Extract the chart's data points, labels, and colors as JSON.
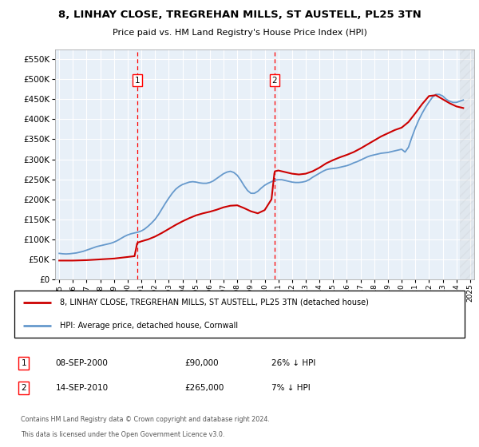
{
  "title": "8, LINHAY CLOSE, TREGREHAN MILLS, ST AUSTELL, PL25 3TN",
  "subtitle": "Price paid vs. HM Land Registry's House Price Index (HPI)",
  "ylim": [
    0,
    575000
  ],
  "yticks": [
    0,
    50000,
    100000,
    150000,
    200000,
    250000,
    300000,
    350000,
    400000,
    450000,
    500000,
    550000
  ],
  "xlim_start": 1994.7,
  "xlim_end": 2025.3,
  "sale1_x": 2000.69,
  "sale2_x": 2010.71,
  "sale1_label": "1",
  "sale2_label": "2",
  "legend_line1": "8, LINHAY CLOSE, TREGREHAN MILLS, ST AUSTELL, PL25 3TN (detached house)",
  "legend_line2": "HPI: Average price, detached house, Cornwall",
  "footer1": "Contains HM Land Registry data © Crown copyright and database right 2024.",
  "footer2": "This data is licensed under the Open Government Licence v3.0.",
  "table_row1": [
    "1",
    "08-SEP-2000",
    "£90,000",
    "26% ↓ HPI"
  ],
  "table_row2": [
    "2",
    "14-SEP-2010",
    "£265,000",
    "7% ↓ HPI"
  ],
  "hpi_color": "#6699cc",
  "sold_color": "#cc0000",
  "background_color": "#e8f0f8",
  "hatch_start": 2024.25,
  "hpi_data_x": [
    1995.0,
    1995.25,
    1995.5,
    1995.75,
    1996.0,
    1996.25,
    1996.5,
    1996.75,
    1997.0,
    1997.25,
    1997.5,
    1997.75,
    1998.0,
    1998.25,
    1998.5,
    1998.75,
    1999.0,
    1999.25,
    1999.5,
    1999.75,
    2000.0,
    2000.25,
    2000.5,
    2000.75,
    2001.0,
    2001.25,
    2001.5,
    2001.75,
    2002.0,
    2002.25,
    2002.5,
    2002.75,
    2003.0,
    2003.25,
    2003.5,
    2003.75,
    2004.0,
    2004.25,
    2004.5,
    2004.75,
    2005.0,
    2005.25,
    2005.5,
    2005.75,
    2006.0,
    2006.25,
    2006.5,
    2006.75,
    2007.0,
    2007.25,
    2007.5,
    2007.75,
    2008.0,
    2008.25,
    2008.5,
    2008.75,
    2009.0,
    2009.25,
    2009.5,
    2009.75,
    2010.0,
    2010.25,
    2010.5,
    2010.75,
    2011.0,
    2011.25,
    2011.5,
    2011.75,
    2012.0,
    2012.25,
    2012.5,
    2012.75,
    2013.0,
    2013.25,
    2013.5,
    2013.75,
    2014.0,
    2014.25,
    2014.5,
    2014.75,
    2015.0,
    2015.25,
    2015.5,
    2015.75,
    2016.0,
    2016.25,
    2016.5,
    2016.75,
    2017.0,
    2017.25,
    2017.5,
    2017.75,
    2018.0,
    2018.25,
    2018.5,
    2018.75,
    2019.0,
    2019.25,
    2019.5,
    2019.75,
    2020.0,
    2020.25,
    2020.5,
    2020.75,
    2021.0,
    2021.25,
    2021.5,
    2021.75,
    2022.0,
    2022.25,
    2022.5,
    2022.75,
    2023.0,
    2023.25,
    2023.5,
    2023.75,
    2024.0,
    2024.25,
    2024.5
  ],
  "hpi_data_y": [
    65000,
    64000,
    63500,
    64000,
    65000,
    66000,
    68000,
    70000,
    73000,
    76000,
    79000,
    82000,
    84000,
    86000,
    88000,
    90000,
    93000,
    97000,
    102000,
    107000,
    111000,
    114000,
    116000,
    118000,
    121000,
    126000,
    133000,
    141000,
    150000,
    162000,
    176000,
    190000,
    203000,
    215000,
    225000,
    232000,
    237000,
    240000,
    243000,
    244000,
    243000,
    241000,
    240000,
    240000,
    242000,
    246000,
    252000,
    258000,
    264000,
    268000,
    270000,
    267000,
    260000,
    248000,
    234000,
    222000,
    215000,
    215000,
    220000,
    228000,
    235000,
    240000,
    244000,
    248000,
    249000,
    249000,
    247000,
    245000,
    243000,
    242000,
    242000,
    243000,
    245000,
    249000,
    255000,
    260000,
    265000,
    270000,
    274000,
    276000,
    277000,
    278000,
    280000,
    282000,
    284000,
    287000,
    291000,
    294000,
    298000,
    302000,
    306000,
    309000,
    311000,
    313000,
    315000,
    316000,
    317000,
    319000,
    321000,
    323000,
    325000,
    318000,
    330000,
    355000,
    378000,
    398000,
    415000,
    430000,
    443000,
    455000,
    462000,
    462000,
    458000,
    450000,
    445000,
    442000,
    442000,
    445000,
    448000
  ],
  "sold_data_x": [
    1995.0,
    1995.5,
    1996.0,
    1996.5,
    1997.0,
    1997.5,
    1998.0,
    1998.5,
    1999.0,
    1999.5,
    2000.0,
    2000.5,
    2000.69,
    2000.75,
    2001.0,
    2001.5,
    2002.0,
    2002.5,
    2003.0,
    2003.5,
    2004.0,
    2004.5,
    2005.0,
    2005.5,
    2006.0,
    2006.5,
    2007.0,
    2007.5,
    2008.0,
    2008.5,
    2009.0,
    2009.5,
    2010.0,
    2010.5,
    2010.71,
    2010.75,
    2011.0,
    2011.5,
    2012.0,
    2012.5,
    2013.0,
    2013.5,
    2014.0,
    2014.5,
    2015.0,
    2015.5,
    2016.0,
    2016.5,
    2017.0,
    2017.5,
    2018.0,
    2018.5,
    2019.0,
    2019.5,
    2020.0,
    2020.5,
    2021.0,
    2021.5,
    2022.0,
    2022.5,
    2023.0,
    2023.5,
    2024.0,
    2024.5
  ],
  "sold_data_y": [
    47000,
    47000,
    47000,
    47500,
    48000,
    49000,
    50000,
    51000,
    52000,
    54000,
    56000,
    58000,
    90000,
    92000,
    95000,
    100000,
    107000,
    116000,
    126000,
    136000,
    145000,
    153000,
    160000,
    165000,
    169000,
    174000,
    180000,
    184000,
    185000,
    178000,
    170000,
    165000,
    173000,
    200000,
    265000,
    270000,
    272000,
    268000,
    264000,
    262000,
    264000,
    270000,
    279000,
    290000,
    298000,
    305000,
    311000,
    318000,
    327000,
    337000,
    347000,
    357000,
    365000,
    373000,
    379000,
    393000,
    415000,
    438000,
    458000,
    460000,
    450000,
    440000,
    432000,
    428000
  ]
}
